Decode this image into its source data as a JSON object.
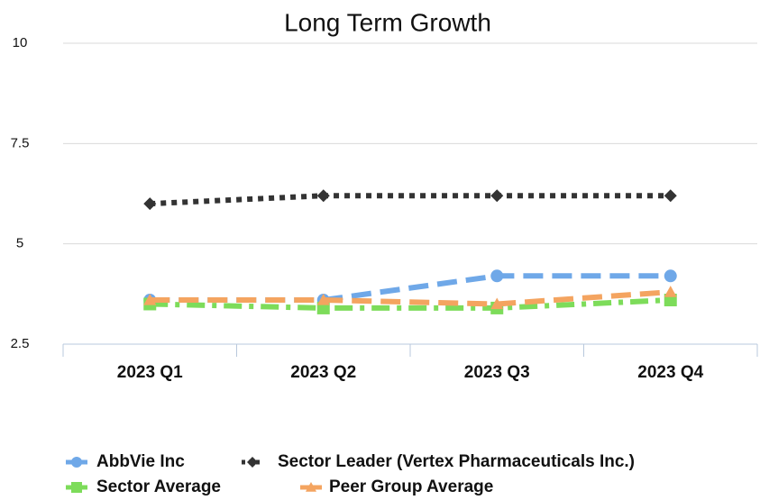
{
  "chart_data": {
    "type": "line",
    "title": "Long Term Growth",
    "categories": [
      "2023 Q1",
      "2023 Q2",
      "2023 Q3",
      "2023 Q4"
    ],
    "series": [
      {
        "name": "AbbVie Inc",
        "color": "#6fa8e8",
        "dash": "dashed",
        "marker": "circle",
        "values": [
          3.6,
          3.6,
          4.2,
          4.2
        ]
      },
      {
        "name": "Sector Leader (Vertex Pharmaceuticals Inc.)",
        "color": "#333333",
        "dash": "dotted",
        "marker": "diamond",
        "values": [
          6.0,
          6.2,
          6.2,
          6.2
        ]
      },
      {
        "name": "Sector Average",
        "color": "#7ddc5a",
        "dash": "dashdot",
        "marker": "square",
        "values": [
          3.5,
          3.4,
          3.4,
          3.6
        ]
      },
      {
        "name": "Peer Group Average",
        "color": "#f4a460",
        "dash": "dashed",
        "marker": "triangle",
        "values": [
          3.6,
          3.6,
          3.5,
          3.8
        ]
      }
    ],
    "ylim": [
      2.5,
      10
    ],
    "yticks": [
      2.5,
      5,
      7.5,
      10
    ],
    "grid": true,
    "legend": "bottom"
  }
}
